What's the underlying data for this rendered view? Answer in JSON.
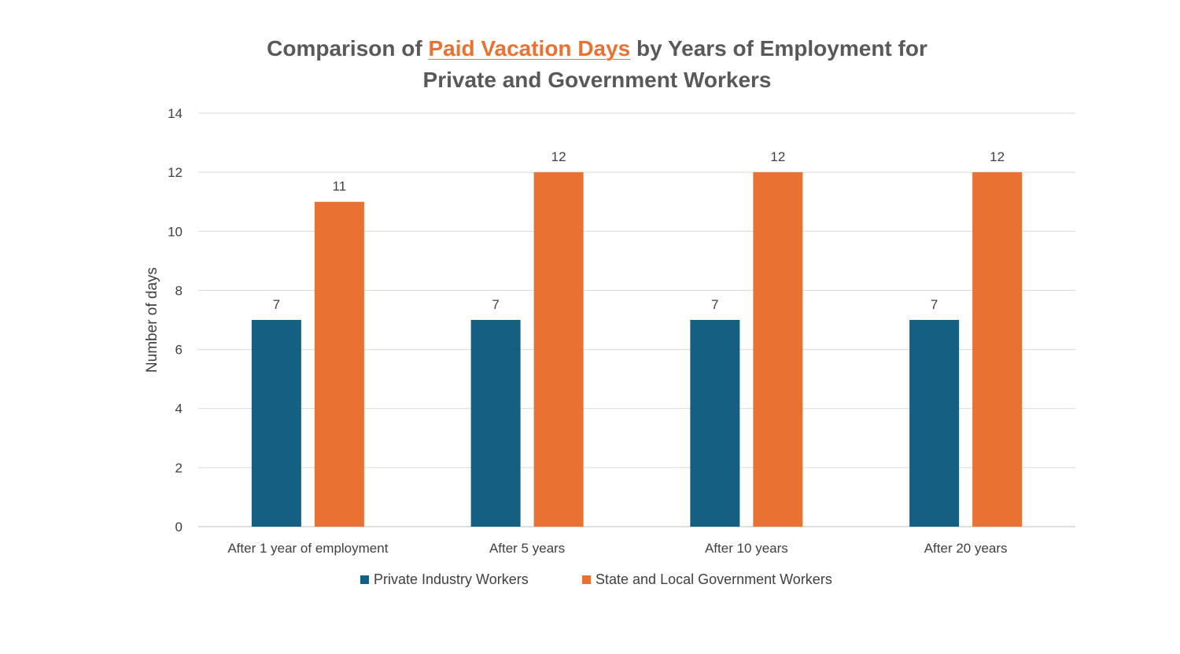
{
  "chart_data": {
    "type": "bar",
    "title": {
      "prefix": "Comparison of ",
      "highlight": "Paid Vacation Days",
      "suffix_line1": " by Years of Employment for",
      "line2": "Private and Government Workers"
    },
    "xlabel": "",
    "ylabel": "Number of days",
    "ylim": [
      0,
      14
    ],
    "yticks": [
      0,
      2,
      4,
      6,
      8,
      10,
      12,
      14
    ],
    "grid": true,
    "legend_position": "bottom",
    "categories": [
      "After 1 year of employment",
      "After 5 years",
      "After 10 years",
      "After 20 years"
    ],
    "series": [
      {
        "name": "Private Industry Workers",
        "color": "#156082",
        "values": [
          7,
          7,
          7,
          7
        ]
      },
      {
        "name": "State and Local Government Workers",
        "color": "#E97132",
        "values": [
          11,
          12,
          12,
          12
        ]
      }
    ]
  }
}
